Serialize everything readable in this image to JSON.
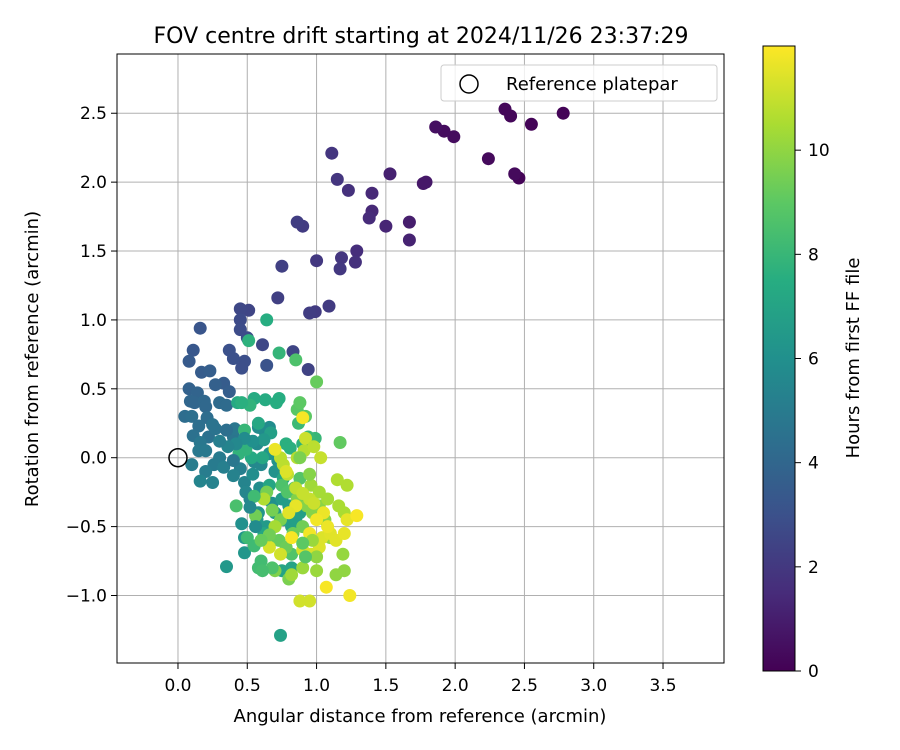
{
  "chart_data": {
    "type": "scatter",
    "title": "FOV centre drift starting at 2024/11/26 23:37:29",
    "xlabel": "Angular distance from reference (arcmin)",
    "ylabel": "Rotation from reference (arcmin)",
    "xlim": [
      -0.44,
      3.94
    ],
    "ylim": [
      -1.49,
      2.93
    ],
    "xticks": [
      0.0,
      0.5,
      1.0,
      1.5,
      2.0,
      2.5,
      3.0,
      3.5
    ],
    "xtick_labels": [
      "0.0",
      "0.5",
      "1.0",
      "1.5",
      "2.0",
      "2.5",
      "3.0",
      "3.5"
    ],
    "yticks": [
      -1.0,
      -0.5,
      0.0,
      0.5,
      1.0,
      1.5,
      2.0,
      2.5
    ],
    "ytick_labels": [
      "−1.0",
      "−0.5",
      "0.0",
      "0.5",
      "1.0",
      "1.5",
      "2.0",
      "2.5"
    ],
    "grid": true,
    "legend": {
      "position": "top-right",
      "entries": [
        "Reference platepar"
      ]
    },
    "reference_point": {
      "x": 0.0,
      "y": 0.0
    },
    "colorbar": {
      "label": "Hours from first FF file",
      "range": [
        0,
        12
      ],
      "ticks": [
        0,
        2,
        4,
        6,
        8,
        10
      ],
      "tick_labels": [
        "0",
        "2",
        "4",
        "6",
        "8",
        "10"
      ],
      "colormap": "viridis"
    },
    "points": [
      [
        2.78,
        2.5,
        0.1
      ],
      [
        2.55,
        2.42,
        0.1
      ],
      [
        2.36,
        2.53,
        0.2
      ],
      [
        2.4,
        2.48,
        0.2
      ],
      [
        2.46,
        2.03,
        0.1
      ],
      [
        2.43,
        2.06,
        0.3
      ],
      [
        2.24,
        2.17,
        0.3
      ],
      [
        1.99,
        2.33,
        0.4
      ],
      [
        1.92,
        2.37,
        0.4
      ],
      [
        1.86,
        2.4,
        0.5
      ],
      [
        1.79,
        2.0,
        0.8
      ],
      [
        1.77,
        1.99,
        0.8
      ],
      [
        1.67,
        1.71,
        1.0
      ],
      [
        1.67,
        1.58,
        1.2
      ],
      [
        1.53,
        2.06,
        1.1
      ],
      [
        1.5,
        1.68,
        1.3
      ],
      [
        1.4,
        1.92,
        1.4
      ],
      [
        1.4,
        1.79,
        1.4
      ],
      [
        1.38,
        1.74,
        1.5
      ],
      [
        1.29,
        1.5,
        1.6
      ],
      [
        1.28,
        1.42,
        1.7
      ],
      [
        1.23,
        1.94,
        1.7
      ],
      [
        1.15,
        2.02,
        1.9
      ],
      [
        1.11,
        2.21,
        1.9
      ],
      [
        1.18,
        1.45,
        1.9
      ],
      [
        1.17,
        1.37,
        2.0
      ],
      [
        1.09,
        1.1,
        2.1
      ],
      [
        1.0,
        1.43,
        2.0
      ],
      [
        0.99,
        1.06,
        2.1
      ],
      [
        0.95,
        1.05,
        2.2
      ],
      [
        0.9,
        1.68,
        2.1
      ],
      [
        0.86,
        1.71,
        2.2
      ],
      [
        0.75,
        1.39,
        2.3
      ],
      [
        0.72,
        1.16,
        2.3
      ],
      [
        0.94,
        0.64,
        2.4
      ],
      [
        0.83,
        0.77,
        2.5
      ],
      [
        0.61,
        0.82,
        2.6
      ],
      [
        0.51,
        1.07,
        2.5
      ],
      [
        0.45,
        1.08,
        2.6
      ],
      [
        0.45,
        1.0,
        2.7
      ],
      [
        0.45,
        0.93,
        2.8
      ],
      [
        0.5,
        0.87,
        2.8
      ],
      [
        0.48,
        0.7,
        2.9
      ],
      [
        0.46,
        0.65,
        2.9
      ],
      [
        0.4,
        0.72,
        3.0
      ],
      [
        0.37,
        0.78,
        3.0
      ],
      [
        0.64,
        0.67,
        3.1
      ],
      [
        0.16,
        0.94,
        3.2
      ],
      [
        0.11,
        0.78,
        3.3
      ],
      [
        0.08,
        0.7,
        3.4
      ],
      [
        0.17,
        0.62,
        3.5
      ],
      [
        0.23,
        0.63,
        3.6
      ],
      [
        0.33,
        0.54,
        3.5
      ],
      [
        0.27,
        0.53,
        3.7
      ],
      [
        0.37,
        0.48,
        3.6
      ],
      [
        0.08,
        0.5,
        3.8
      ],
      [
        0.14,
        0.47,
        3.9
      ],
      [
        0.09,
        0.41,
        4.0
      ],
      [
        0.12,
        0.4,
        4.0
      ],
      [
        0.19,
        0.41,
        4.1
      ],
      [
        0.2,
        0.37,
        4.1
      ],
      [
        0.3,
        0.4,
        4.2
      ],
      [
        0.35,
        0.38,
        4.2
      ],
      [
        0.21,
        0.29,
        4.3
      ],
      [
        0.05,
        0.3,
        4.3
      ],
      [
        0.1,
        0.3,
        4.4
      ],
      [
        0.15,
        0.23,
        4.4
      ],
      [
        0.11,
        0.16,
        4.5
      ],
      [
        0.22,
        0.15,
        4.5
      ],
      [
        0.27,
        0.21,
        4.6
      ],
      [
        0.25,
        0.24,
        4.6
      ],
      [
        0.4,
        0.15,
        4.7
      ],
      [
        0.41,
        0.21,
        4.8
      ],
      [
        0.16,
        0.11,
        4.8
      ],
      [
        0.15,
        0.05,
        4.9
      ],
      [
        0.2,
        0.05,
        4.9
      ],
      [
        0.3,
        0.0,
        5.0
      ],
      [
        0.26,
        -0.05,
        5.0
      ],
      [
        0.1,
        -0.05,
        5.1
      ],
      [
        0.2,
        -0.1,
        5.1
      ],
      [
        0.33,
        -0.07,
        5.2
      ],
      [
        0.45,
        -0.08,
        5.2
      ],
      [
        0.4,
        -0.13,
        5.3
      ],
      [
        0.25,
        -0.18,
        5.3
      ],
      [
        0.16,
        -0.17,
        5.4
      ],
      [
        0.48,
        -0.18,
        5.4
      ],
      [
        0.49,
        -0.25,
        5.5
      ],
      [
        0.52,
        -0.3,
        5.5
      ],
      [
        0.55,
        -0.03,
        5.6
      ],
      [
        0.6,
        -0.05,
        5.6
      ],
      [
        0.57,
        0.1,
        5.7
      ],
      [
        0.62,
        0.2,
        5.7
      ],
      [
        0.58,
        0.22,
        5.8
      ],
      [
        0.66,
        0.22,
        5.8
      ],
      [
        0.54,
        -0.12,
        5.9
      ],
      [
        0.59,
        -0.22,
        5.9
      ],
      [
        0.63,
        -0.3,
        6.0
      ],
      [
        0.68,
        -0.33,
        6.0
      ],
      [
        0.7,
        -0.1,
        6.1
      ],
      [
        0.72,
        -0.02,
        6.1
      ],
      [
        0.66,
        0.03,
        6.2
      ],
      [
        0.58,
        -0.4,
        6.2
      ],
      [
        0.48,
        -0.58,
        6.3
      ],
      [
        0.48,
        -0.69,
        6.3
      ],
      [
        0.35,
        -0.79,
        6.4
      ],
      [
        0.57,
        -0.45,
        6.4
      ],
      [
        0.64,
        -0.5,
        6.5
      ],
      [
        0.7,
        -0.4,
        6.5
      ],
      [
        0.75,
        -0.3,
        6.6
      ],
      [
        0.8,
        -0.35,
        6.6
      ],
      [
        0.76,
        -0.45,
        6.7
      ],
      [
        0.82,
        -0.5,
        6.7
      ],
      [
        0.85,
        -0.45,
        6.8
      ],
      [
        0.88,
        -0.4,
        6.8
      ],
      [
        0.74,
        -1.29,
        6.9
      ],
      [
        0.75,
        -0.82,
        7.0
      ],
      [
        0.82,
        -0.8,
        7.0
      ],
      [
        0.62,
        -0.55,
        7.1
      ],
      [
        0.66,
        -0.2,
        7.1
      ],
      [
        0.76,
        -0.15,
        7.2
      ],
      [
        0.61,
        0.0,
        7.2
      ],
      [
        0.53,
        0.0,
        7.3
      ],
      [
        0.43,
        0.4,
        7.3
      ],
      [
        0.55,
        0.43,
        7.4
      ],
      [
        0.63,
        0.42,
        7.4
      ],
      [
        0.73,
        0.43,
        7.5
      ],
      [
        0.71,
        0.4,
        7.5
      ],
      [
        0.78,
        0.1,
        7.6
      ],
      [
        0.81,
        0.07,
        7.6
      ],
      [
        0.9,
        0.1,
        7.7
      ],
      [
        0.64,
        1.0,
        7.5
      ],
      [
        0.51,
        0.85,
        7.7
      ],
      [
        0.49,
        0.06,
        7.8
      ],
      [
        0.44,
        0.03,
        7.8
      ],
      [
        0.73,
        0.76,
        7.9
      ],
      [
        0.48,
        0.2,
        8.0
      ],
      [
        0.99,
        0.14,
        8.0
      ],
      [
        0.94,
        0.15,
        8.1
      ],
      [
        0.87,
        0.25,
        8.1
      ],
      [
        0.5,
        -0.58,
        8.2
      ],
      [
        0.55,
        -0.64,
        8.2
      ],
      [
        0.58,
        -0.8,
        8.3
      ],
      [
        0.6,
        -0.75,
        8.3
      ],
      [
        0.68,
        -0.6,
        8.4
      ],
      [
        0.42,
        -0.35,
        8.5
      ],
      [
        0.85,
        0.71,
        8.6
      ],
      [
        0.75,
        -0.2,
        8.6
      ],
      [
        0.79,
        -0.25,
        8.7
      ],
      [
        0.82,
        -0.7,
        8.7
      ],
      [
        0.84,
        -0.22,
        8.8
      ],
      [
        0.88,
        -0.15,
        8.8
      ],
      [
        0.86,
        0.35,
        8.9
      ],
      [
        0.88,
        0.4,
        9.0
      ],
      [
        0.92,
        0.3,
        9.0
      ],
      [
        1.17,
        0.11,
        9.1
      ],
      [
        1.0,
        0.55,
        9.2
      ],
      [
        0.73,
        -0.6,
        9.2
      ],
      [
        0.78,
        -0.65,
        9.3
      ],
      [
        0.83,
        -0.55,
        9.3
      ],
      [
        0.9,
        -0.5,
        9.4
      ],
      [
        0.56,
        -0.42,
        9.4
      ],
      [
        0.64,
        -0.25,
        9.5
      ],
      [
        0.68,
        -0.38,
        9.5
      ],
      [
        0.74,
        -0.45,
        9.6
      ],
      [
        0.8,
        -0.88,
        9.6
      ],
      [
        0.7,
        -0.82,
        9.7
      ],
      [
        0.86,
        -0.3,
        9.7
      ],
      [
        0.93,
        -0.35,
        9.8
      ],
      [
        0.97,
        -0.4,
        9.8
      ],
      [
        1.02,
        -0.35,
        9.9
      ],
      [
        1.06,
        -0.45,
        9.9
      ],
      [
        1.2,
        -0.82,
        10.0
      ],
      [
        1.14,
        -0.85,
        10.0
      ],
      [
        1.19,
        -0.7,
        10.1
      ],
      [
        1.1,
        -0.58,
        10.1
      ],
      [
        1.0,
        -0.82,
        10.2
      ],
      [
        0.9,
        -0.8,
        10.2
      ],
      [
        0.82,
        -0.85,
        10.3
      ],
      [
        0.96,
        -0.2,
        10.3
      ],
      [
        1.02,
        -0.25,
        10.4
      ],
      [
        1.08,
        -0.3,
        10.4
      ],
      [
        1.16,
        -0.35,
        10.5
      ],
      [
        1.2,
        -0.4,
        10.5
      ],
      [
        1.22,
        -0.2,
        10.6
      ],
      [
        1.15,
        -0.16,
        10.6
      ],
      [
        0.86,
        0.0,
        10.7
      ],
      [
        0.91,
        0.05,
        10.7
      ],
      [
        0.74,
        0.0,
        10.8
      ],
      [
        0.76,
        -0.05,
        10.8
      ],
      [
        0.79,
        -0.12,
        10.9
      ],
      [
        0.85,
        -0.22,
        10.9
      ],
      [
        0.9,
        -0.26,
        11.0
      ],
      [
        0.95,
        -0.3,
        11.0
      ],
      [
        0.98,
        -0.33,
        11.1
      ],
      [
        0.92,
        0.14,
        11.1
      ],
      [
        0.95,
        -1.04,
        11.2
      ],
      [
        0.88,
        -1.04,
        11.2
      ],
      [
        0.9,
        -0.67,
        11.3
      ],
      [
        0.96,
        -0.7,
        11.3
      ],
      [
        1.02,
        -0.65,
        11.4
      ],
      [
        1.04,
        -0.58,
        11.4
      ],
      [
        1.1,
        -0.55,
        11.5
      ],
      [
        1.14,
        -0.6,
        11.5
      ],
      [
        1.2,
        -0.55,
        11.6
      ],
      [
        1.22,
        -0.45,
        11.6
      ],
      [
        1.08,
        -0.5,
        11.7
      ],
      [
        1.05,
        -0.4,
        11.7
      ],
      [
        1.0,
        -0.45,
        11.8
      ],
      [
        0.95,
        -0.55,
        11.8
      ],
      [
        1.24,
        -1.0,
        11.8
      ],
      [
        1.29,
        -0.42,
        11.9
      ],
      [
        1.07,
        -0.94,
        11.9
      ],
      [
        0.82,
        -0.58,
        11.9
      ],
      [
        0.9,
        0.29,
        11.9
      ],
      [
        0.7,
        0.06,
        11.7
      ],
      [
        0.85,
        -0.35,
        11.6
      ],
      [
        0.8,
        -0.4,
        11.5
      ],
      [
        0.78,
        -0.1,
        11.4
      ],
      [
        0.66,
        -0.65,
        11.3
      ],
      [
        0.74,
        -0.7,
        11.2
      ],
      [
        1.03,
        0.0,
        11.0
      ],
      [
        0.98,
        0.08,
        10.8
      ],
      [
        0.62,
        -0.3,
        10.6
      ],
      [
        0.7,
        -0.5,
        10.4
      ],
      [
        0.97,
        -0.6,
        10.2
      ],
      [
        1.0,
        -0.72,
        10.0
      ],
      [
        0.95,
        -0.12,
        9.8
      ],
      [
        0.88,
        0.0,
        9.6
      ],
      [
        0.66,
        -0.56,
        9.4
      ],
      [
        0.6,
        -0.6,
        9.2
      ],
      [
        0.9,
        -0.62,
        9.0
      ],
      [
        0.92,
        -0.72,
        8.8
      ],
      [
        0.68,
        -0.8,
        8.6
      ],
      [
        0.61,
        -0.82,
        8.4
      ],
      [
        0.55,
        -0.28,
        8.2
      ],
      [
        0.52,
        0.38,
        7.8
      ],
      [
        0.46,
        0.4,
        7.6
      ],
      [
        0.58,
        0.25,
        7.2
      ],
      [
        0.67,
        0.18,
        6.8
      ],
      [
        0.62,
        0.13,
        6.4
      ],
      [
        0.54,
        0.12,
        6.0
      ],
      [
        0.48,
        0.14,
        5.8
      ],
      [
        0.42,
        0.1,
        5.6
      ],
      [
        0.36,
        0.08,
        5.4
      ],
      [
        0.3,
        0.12,
        5.2
      ],
      [
        0.56,
        -0.5,
        5.8
      ],
      [
        0.52,
        -0.36,
        5.6
      ],
      [
        0.46,
        -0.48,
        6.0
      ],
      [
        0.4,
        -0.02,
        4.8
      ],
      [
        0.35,
        0.2,
        4.4
      ]
    ]
  }
}
